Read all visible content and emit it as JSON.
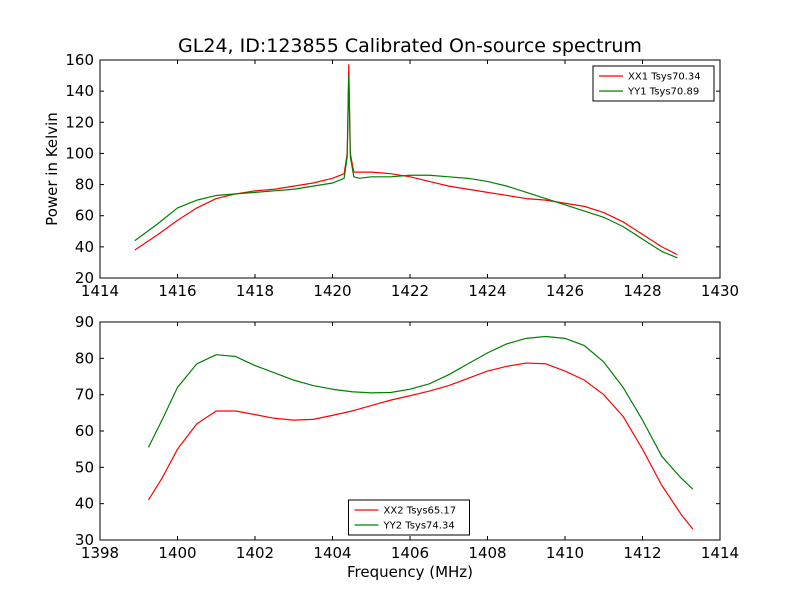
{
  "chart_data": [
    {
      "type": "line",
      "title": "GL24, ID:123855 Calibrated On-source spectrum",
      "xlabel": "",
      "ylabel": "Power in Kelvin",
      "xlim": [
        1414,
        1430
      ],
      "ylim": [
        20,
        160
      ],
      "xticks": [
        "1414",
        "1416",
        "1418",
        "1420",
        "1422",
        "1424",
        "1426",
        "1428",
        "1430"
      ],
      "yticks": [
        "20",
        "40",
        "60",
        "80",
        "100",
        "120",
        "140",
        "160"
      ],
      "grid": false,
      "legend_position": "top-right",
      "series": [
        {
          "name": "XX1 Tsys70.34",
          "color": "#ff0000",
          "x": [
            1414.9,
            1415.5,
            1416.0,
            1416.5,
            1417.0,
            1417.5,
            1418.0,
            1418.5,
            1419.0,
            1419.5,
            1420.0,
            1420.3,
            1420.38,
            1420.42,
            1420.46,
            1420.55,
            1420.7,
            1421.0,
            1421.5,
            1422.0,
            1422.5,
            1423.0,
            1423.5,
            1424.0,
            1424.5,
            1425.0,
            1425.5,
            1426.0,
            1426.5,
            1427.0,
            1427.5,
            1428.0,
            1428.5,
            1428.9
          ],
          "y": [
            38,
            48,
            57,
            65,
            71,
            74,
            76,
            77,
            79,
            81,
            84,
            87,
            100,
            157,
            100,
            88,
            88,
            88,
            87,
            85,
            82,
            79,
            77,
            75,
            73,
            71,
            70,
            68,
            66,
            62,
            56,
            48,
            40,
            35
          ]
        },
        {
          "name": "YY1 Tsys70.89",
          "color": "#008000",
          "x": [
            1414.9,
            1415.5,
            1416.0,
            1416.5,
            1417.0,
            1417.5,
            1418.0,
            1418.5,
            1419.0,
            1419.5,
            1420.0,
            1420.3,
            1420.38,
            1420.42,
            1420.46,
            1420.55,
            1420.7,
            1421.0,
            1421.5,
            1422.0,
            1422.5,
            1423.0,
            1423.5,
            1424.0,
            1424.5,
            1425.0,
            1425.5,
            1426.0,
            1426.5,
            1427.0,
            1427.5,
            1428.0,
            1428.5,
            1428.9
          ],
          "y": [
            44,
            55,
            65,
            70,
            73,
            74,
            75,
            76,
            77,
            79,
            81,
            84,
            98,
            150,
            98,
            85,
            84,
            85,
            85,
            86,
            86,
            85,
            84,
            82,
            79,
            75,
            71,
            67,
            63,
            59,
            53,
            45,
            37,
            33
          ]
        }
      ]
    },
    {
      "type": "line",
      "title": "",
      "xlabel": "Frequency (MHz)",
      "ylabel": "",
      "xlim": [
        1398,
        1414
      ],
      "ylim": [
        30,
        90
      ],
      "xticks": [
        "1398",
        "1400",
        "1402",
        "1404",
        "1406",
        "1408",
        "1410",
        "1412",
        "1414"
      ],
      "yticks": [
        "30",
        "40",
        "50",
        "60",
        "70",
        "80",
        "90"
      ],
      "grid": false,
      "legend_position": "bottom-center",
      "series": [
        {
          "name": "XX2 Tsys65.17",
          "color": "#ff0000",
          "x": [
            1399.25,
            1399.6,
            1400.0,
            1400.5,
            1401.0,
            1401.5,
            1402.0,
            1402.5,
            1403.0,
            1403.5,
            1404.0,
            1404.5,
            1405.0,
            1405.5,
            1406.0,
            1406.5,
            1407.0,
            1407.5,
            1408.0,
            1408.5,
            1409.0,
            1409.5,
            1410.0,
            1410.5,
            1411.0,
            1411.5,
            1412.0,
            1412.5,
            1413.0,
            1413.3
          ],
          "y": [
            41,
            47,
            55,
            62,
            65.5,
            65.5,
            64.5,
            63.5,
            63,
            63.2,
            64.3,
            65.5,
            67,
            68.5,
            69.7,
            71,
            72.5,
            74.5,
            76.5,
            77.8,
            78.7,
            78.5,
            76.5,
            74,
            70,
            64,
            55,
            45,
            37,
            33
          ]
        },
        {
          "name": "YY2 Tsys74.34",
          "color": "#008000",
          "x": [
            1399.25,
            1399.6,
            1400.0,
            1400.5,
            1401.0,
            1401.5,
            1402.0,
            1402.5,
            1403.0,
            1403.5,
            1404.0,
            1404.5,
            1405.0,
            1405.5,
            1406.0,
            1406.5,
            1407.0,
            1407.5,
            1408.0,
            1408.5,
            1409.0,
            1409.5,
            1410.0,
            1410.5,
            1411.0,
            1411.5,
            1412.0,
            1412.5,
            1413.0,
            1413.3
          ],
          "y": [
            55.5,
            63,
            72,
            78.5,
            81,
            80.5,
            78,
            76,
            74,
            72.5,
            71.5,
            70.8,
            70.5,
            70.6,
            71.5,
            73,
            75.5,
            78.5,
            81.5,
            84,
            85.5,
            86,
            85.5,
            83.5,
            79,
            72,
            63,
            53,
            47,
            44
          ]
        }
      ]
    }
  ]
}
